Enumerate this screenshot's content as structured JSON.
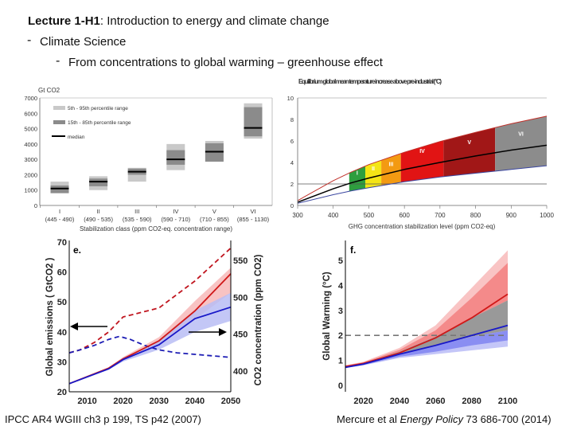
{
  "header": {
    "lecture_code": "Lecture 1-H1",
    "lecture_title": ": Introduction to energy and climate change",
    "bullet1": "Climate Science",
    "bullet2": "From concentrations to global warming – greenhouse effect"
  },
  "footer": {
    "left": "IPCC AR4 WGIII ch3 p 199, TS p42 (2007)",
    "right_prefix": "Mercure et al ",
    "right_journal": "Energy Policy",
    "right_suffix": " 73 686-700 (2014)"
  },
  "chart_data": [
    {
      "type": "bar",
      "subtype": "range-box",
      "ylabel": "Gt CO2",
      "xlabel": "Stabilization class (ppm CO2-eq. concentration range)",
      "ylim": [
        0,
        7000
      ],
      "yticks": [
        "0",
        "1000",
        "2000",
        "3000",
        "4000",
        "5000",
        "6000",
        "7000"
      ],
      "legend": {
        "light": "5th - 95th percentile range",
        "dark": "15th - 85th percentile range",
        "median": "median",
        "placement": "top-left"
      },
      "colors": {
        "light": "#c9c9c9",
        "dark": "#8b8b8b",
        "median": "#000000"
      },
      "categories": [
        "I",
        "II",
        "III",
        "IV",
        "V",
        "VI"
      ],
      "category_ranges": [
        "(445 - 490)",
        "(490 - 535)",
        "(535 - 590)",
        "(590 - 710)",
        "(710 - 855)",
        "(855 - 1130)"
      ],
      "p5_95": [
        [
          800,
          1550
        ],
        [
          1000,
          1900
        ],
        [
          1550,
          2450
        ],
        [
          2300,
          4000
        ],
        [
          2850,
          4200
        ],
        [
          4350,
          6650
        ]
      ],
      "p15_85": [
        [
          800,
          1300
        ],
        [
          1250,
          1750
        ],
        [
          2000,
          2400
        ],
        [
          2650,
          3600
        ],
        [
          2850,
          4050
        ],
        [
          4500,
          6400
        ]
      ],
      "median": [
        1100,
        1550,
        2200,
        3000,
        3500,
        5050
      ]
    },
    {
      "type": "area",
      "title": "Equilibrium global mean temperature increase above pre-industrial (°C)",
      "xlabel": "GHG concentration stabilization level (ppm CO2-eq)",
      "xlim": [
        300,
        1000
      ],
      "ylim": [
        0,
        10
      ],
      "xticks": [
        "300",
        "400",
        "500",
        "600",
        "700",
        "800",
        "900",
        "1000"
      ],
      "yticks": [
        "0",
        "2",
        "4",
        "6",
        "8",
        "10"
      ],
      "reference_line": 2,
      "x": [
        300,
        400,
        450,
        500,
        600,
        700,
        800,
        900,
        1000
      ],
      "upper": [
        0.45,
        2.3,
        3.1,
        3.8,
        4.95,
        5.95,
        6.8,
        7.6,
        8.3
      ],
      "median": [
        0.3,
        1.55,
        2.1,
        2.55,
        3.35,
        4.0,
        4.6,
        5.15,
        5.6
      ],
      "lower": [
        0.2,
        1.0,
        1.35,
        1.65,
        2.2,
        2.65,
        3.0,
        3.35,
        3.7
      ],
      "classes": [
        {
          "label": "I",
          "range": [
            445,
            490
          ],
          "color": "#2e9e3e"
        },
        {
          "label": "II",
          "range": [
            490,
            535
          ],
          "color": "#f4e516"
        },
        {
          "label": "III",
          "range": [
            535,
            590
          ],
          "color": "#f39a12"
        },
        {
          "label": "IV",
          "range": [
            590,
            710
          ],
          "color": "#e11414"
        },
        {
          "label": "V",
          "range": [
            710,
            855
          ],
          "color": "#a11717"
        },
        {
          "label": "VI",
          "range": [
            855,
            1000
          ],
          "color": "#8c8c8c"
        }
      ],
      "line_colors": {
        "upper": "#c0302a",
        "median": "#000000",
        "lower": "#3a46a0"
      }
    },
    {
      "type": "line",
      "panel": "e.",
      "ylabel": "Global emissions ( GtCO2 )",
      "ylabel_right": "CO2 concentration (ppm CO2)",
      "xlim": [
        2005,
        2050
      ],
      "ylim": [
        20,
        70
      ],
      "ylim_right": [
        370,
        559
      ],
      "xticks": [
        "2010",
        "2020",
        "2030",
        "2040",
        "2050"
      ],
      "yticks": [
        "20",
        "30",
        "40",
        "50",
        "60",
        "70"
      ],
      "yticks_right": [
        "400",
        "450",
        "500",
        "550"
      ],
      "series": [
        {
          "kind": "emissions",
          "axis": "left",
          "style": "dashed",
          "color": "#c0141e",
          "x": [
            2005,
            2008,
            2012,
            2016,
            2020,
            2025,
            2030,
            2035,
            2040,
            2045,
            2050
          ],
          "y": [
            33,
            34,
            36.5,
            40,
            45,
            46.5,
            48,
            52.5,
            57,
            62.5,
            68
          ]
        },
        {
          "kind": "emissions",
          "axis": "left",
          "style": "dashed",
          "color": "#1c1cb4",
          "x": [
            2005,
            2008,
            2012,
            2016,
            2019,
            2022,
            2026,
            2030,
            2035,
            2040,
            2045,
            2050
          ],
          "y": [
            33,
            34,
            35.5,
            37.5,
            38.5,
            37.5,
            35.5,
            34,
            33,
            32.5,
            32,
            31.5
          ]
        },
        {
          "kind": "concentration",
          "axis": "right",
          "style": "solid",
          "color": "#d01818",
          "x": [
            2005,
            2016,
            2020,
            2030,
            2040,
            2050
          ],
          "y": [
            383,
            404,
            416.6,
            441,
            481.5,
            532
          ],
          "band_hi": [
            383,
            405,
            419,
            446,
            495,
            540
          ],
          "band_lo": [
            383,
            403,
            415,
            436,
            470,
            506
          ]
        },
        {
          "kind": "concentration",
          "axis": "right",
          "style": "solid",
          "color": "#1818c8",
          "x": [
            2005,
            2016,
            2020,
            2030,
            2040,
            2050
          ],
          "y": [
            383,
            403,
            415.5,
            435.6,
            471,
            486.7
          ],
          "band_hi": [
            383,
            404,
            418,
            441,
            482,
            506
          ],
          "band_lo": [
            383,
            402,
            413,
            429,
            453,
            468
          ]
        }
      ],
      "band_colors": {
        "red": "#f7b9b9",
        "blue": "#b9bdf5"
      }
    },
    {
      "type": "line",
      "panel": "f.",
      "ylabel": "Global Warming (°C)",
      "xlim": [
        2010,
        2100
      ],
      "ylim": [
        0,
        5.7
      ],
      "xticks": [
        "2020",
        "2040",
        "2060",
        "2080",
        "2100"
      ],
      "yticks": [
        "0",
        "1",
        "2",
        "3",
        "4",
        "5"
      ],
      "reference_line": 2,
      "x": [
        2010,
        2020,
        2040,
        2060,
        2080,
        2100
      ],
      "series": [
        {
          "color": "#d01818",
          "y": [
            0.75,
            0.88,
            1.3,
            1.9,
            2.7,
            3.65
          ]
        },
        {
          "color": "#1818c8",
          "y": [
            0.72,
            0.85,
            1.25,
            1.6,
            2.0,
            2.4
          ]
        }
      ],
      "bands": {
        "red_outer_hi": [
          0.8,
          0.95,
          1.5,
          2.4,
          3.9,
          5.4
        ],
        "red_inner_hi": [
          0.8,
          0.92,
          1.42,
          2.2,
          3.5,
          4.9
        ],
        "grey_hi": [
          0.78,
          0.9,
          1.35,
          1.95,
          2.7,
          3.4
        ],
        "grey_lo": [
          0.75,
          0.87,
          1.25,
          1.6,
          1.95,
          2.2
        ],
        "blue_inner_lo": [
          0.7,
          0.82,
          1.15,
          1.35,
          1.6,
          1.8
        ],
        "blue_outer_lo": [
          0.7,
          0.8,
          1.1,
          1.25,
          1.4,
          1.55
        ]
      },
      "band_colors": {
        "red_outer": "#f9c4c4",
        "red_inner": "#f48a8a",
        "grey": "#999999",
        "blue_inner": "#8a8ef2",
        "blue_outer": "#c4c6f8"
      }
    }
  ]
}
